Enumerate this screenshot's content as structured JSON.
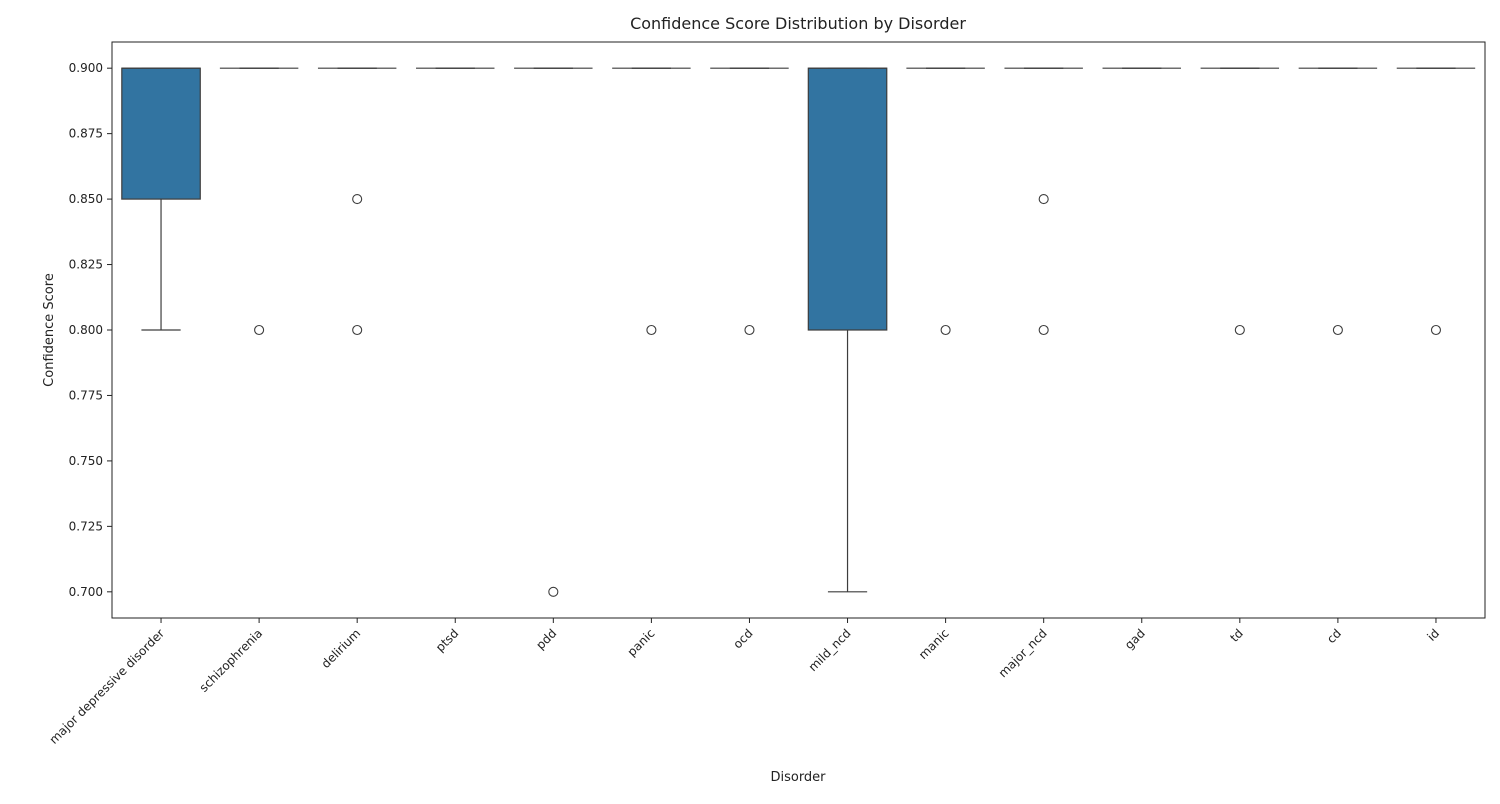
{
  "chart_data": {
    "type": "box",
    "title": "Confidence Score Distribution by Disorder",
    "xlabel": "Disorder",
    "ylabel": "Confidence Score",
    "ylim": [
      0.69,
      0.91
    ],
    "yticks": [
      0.7,
      0.725,
      0.75,
      0.775,
      0.8,
      0.825,
      0.85,
      0.875,
      0.9
    ],
    "ytick_labels": [
      "0.700",
      "0.725",
      "0.750",
      "0.775",
      "0.800",
      "0.825",
      "0.850",
      "0.875",
      "0.900"
    ],
    "grid": false,
    "box_color": "#3274a1",
    "categories": [
      "major depressive disorder",
      "schizophrenia",
      "delirium",
      "ptsd",
      "pdd",
      "panic",
      "ocd",
      "mild_ncd",
      "manic",
      "major_ncd",
      "gad",
      "td",
      "cd",
      "id"
    ],
    "boxes": [
      {
        "q1": 0.85,
        "median": 0.9,
        "q3": 0.9,
        "whisker_low": 0.8,
        "whisker_high": 0.9,
        "outliers": []
      },
      {
        "q1": 0.9,
        "median": 0.9,
        "q3": 0.9,
        "whisker_low": 0.9,
        "whisker_high": 0.9,
        "outliers": [
          0.8
        ]
      },
      {
        "q1": 0.9,
        "median": 0.9,
        "q3": 0.9,
        "whisker_low": 0.9,
        "whisker_high": 0.9,
        "outliers": [
          0.85,
          0.8
        ]
      },
      {
        "q1": 0.9,
        "median": 0.9,
        "q3": 0.9,
        "whisker_low": 0.9,
        "whisker_high": 0.9,
        "outliers": []
      },
      {
        "q1": 0.9,
        "median": 0.9,
        "q3": 0.9,
        "whisker_low": 0.9,
        "whisker_high": 0.9,
        "outliers": [
          0.7
        ]
      },
      {
        "q1": 0.9,
        "median": 0.9,
        "q3": 0.9,
        "whisker_low": 0.9,
        "whisker_high": 0.9,
        "outliers": [
          0.8
        ]
      },
      {
        "q1": 0.9,
        "median": 0.9,
        "q3": 0.9,
        "whisker_low": 0.9,
        "whisker_high": 0.9,
        "outliers": [
          0.8
        ]
      },
      {
        "q1": 0.8,
        "median": 0.9,
        "q3": 0.9,
        "whisker_low": 0.7,
        "whisker_high": 0.9,
        "outliers": []
      },
      {
        "q1": 0.9,
        "median": 0.9,
        "q3": 0.9,
        "whisker_low": 0.9,
        "whisker_high": 0.9,
        "outliers": [
          0.8
        ]
      },
      {
        "q1": 0.9,
        "median": 0.9,
        "q3": 0.9,
        "whisker_low": 0.9,
        "whisker_high": 0.9,
        "outliers": [
          0.85,
          0.8
        ]
      },
      {
        "q1": 0.9,
        "median": 0.9,
        "q3": 0.9,
        "whisker_low": 0.9,
        "whisker_high": 0.9,
        "outliers": []
      },
      {
        "q1": 0.9,
        "median": 0.9,
        "q3": 0.9,
        "whisker_low": 0.9,
        "whisker_high": 0.9,
        "outliers": [
          0.8
        ]
      },
      {
        "q1": 0.9,
        "median": 0.9,
        "q3": 0.9,
        "whisker_low": 0.9,
        "whisker_high": 0.9,
        "outliers": [
          0.8
        ]
      },
      {
        "q1": 0.9,
        "median": 0.9,
        "q3": 0.9,
        "whisker_low": 0.9,
        "whisker_high": 0.9,
        "outliers": [
          0.8
        ]
      }
    ]
  }
}
